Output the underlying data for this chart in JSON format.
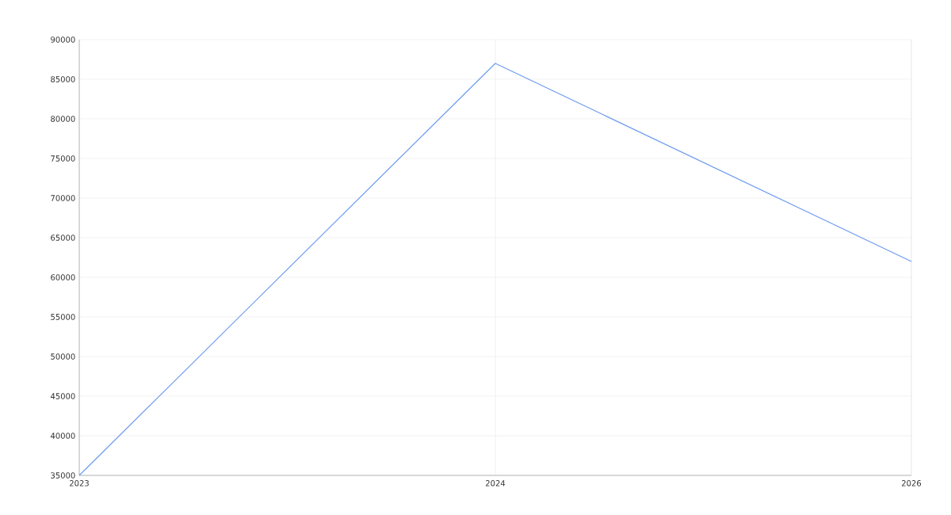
{
  "chart_data": {
    "type": "line",
    "categories": [
      "2023",
      "2024",
      "2026"
    ],
    "values": [
      35000,
      87000,
      62000
    ],
    "color": "#6d9bf0",
    "ylim": [
      35000,
      90000
    ],
    "yticks": [
      35000,
      40000,
      45000,
      50000,
      55000,
      60000,
      65000,
      70000,
      75000,
      80000,
      85000,
      90000
    ],
    "grid": true,
    "marker": "none",
    "line_style": "solid"
  }
}
